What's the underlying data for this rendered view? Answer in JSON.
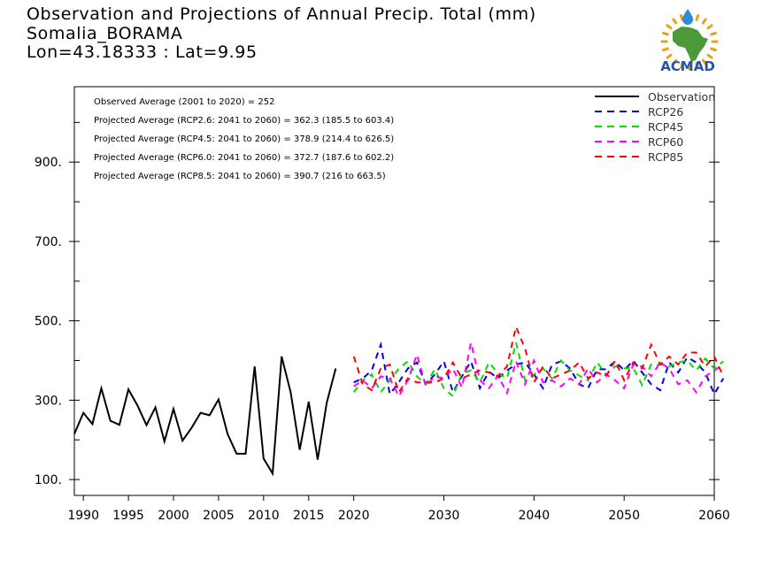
{
  "header": {
    "title_line1": "Observation and Projections of Annual Precip. Total (mm)",
    "title_line2": "Somalia_BORAMA",
    "title_line3": "Lon=43.18333 : Lat=9.95"
  },
  "logo": {
    "text": "ACMAD",
    "colors": {
      "text": "#2255a8",
      "africa": "#4a9a3a",
      "rays": "#e8a020",
      "drop": "#2a8fd0"
    }
  },
  "chart_data": {
    "type": "line",
    "xlim": [
      1989,
      2060
    ],
    "ylim": [
      60,
      1090
    ],
    "x_ticks": [
      1990,
      1995,
      2000,
      2005,
      2010,
      2015,
      2020,
      2030,
      2040,
      2050,
      2060
    ],
    "y_ticks": [
      100,
      300,
      500,
      700,
      900
    ],
    "y_tick_labels": [
      "100.",
      "300.",
      "500.",
      "700.",
      "900."
    ],
    "stats": [
      "Observed Average (2001 to 2020) = 252",
      "Projected Average (RCP2.6: 2041 to 2060) = 362.3 (185.5 to 603.4)",
      "Projected Average (RCP4.5: 2041 to 2060) = 378.9 (214.4 to 626.5)",
      "Projected Average (RCP6.0: 2041 to 2060) = 372.7 (187.6 to 602.2)",
      "Projected Average (RCP8.5: 2041 to 2060) = 390.7 (216 to 663.5)"
    ],
    "series": [
      {
        "name": "Observation",
        "color": "#000000",
        "dashed": false,
        "x_start": 1989,
        "values": [
          215,
          268,
          240,
          330,
          248,
          238,
          327,
          287,
          237,
          282,
          196,
          278,
          198,
          230,
          268,
          262,
          302,
          215,
          165,
          165,
          385,
          153,
          115,
          410,
          320,
          175,
          296,
          150,
          293,
          380
        ]
      },
      {
        "name": "RCP26",
        "color": "#0000ee",
        "dashed": true,
        "x_start": 2020,
        "values": [
          345,
          355,
          375,
          440,
          315,
          345,
          380,
          395,
          340,
          365,
          398,
          320,
          360,
          398,
          330,
          372,
          355,
          375,
          390,
          395,
          365,
          330,
          390,
          398,
          380,
          340,
          330,
          378,
          378,
          398,
          375,
          400,
          370,
          340,
          325,
          395,
          370,
          408,
          395,
          370,
          315,
          355
        ]
      },
      {
        "name": "RCP45",
        "color": "#00dd00",
        "dashed": true,
        "x_start": 2020,
        "values": [
          320,
          350,
          365,
          320,
          350,
          380,
          398,
          360,
          340,
          378,
          330,
          310,
          368,
          375,
          345,
          395,
          368,
          355,
          445,
          350,
          365,
          380,
          355,
          400,
          375,
          362,
          350,
          395,
          365,
          385,
          380,
          382,
          338,
          390,
          390,
          385,
          395,
          400,
          375,
          405,
          380,
          398
        ]
      },
      {
        "name": "RCP60",
        "color": "#ff00ff",
        "dashed": true,
        "x_start": 2020,
        "values": [
          335,
          350,
          330,
          360,
          355,
          310,
          350,
          415,
          335,
          360,
          355,
          380,
          332,
          445,
          350,
          330,
          362,
          318,
          398,
          340,
          400,
          345,
          350,
          335,
          355,
          340,
          380,
          345,
          365,
          350,
          330,
          390,
          385,
          360,
          395,
          380,
          340,
          350,
          320,
          360,
          375,
          390
        ]
      },
      {
        "name": "RCP85",
        "color": "#ff0000",
        "dashed": true,
        "x_start": 2020,
        "values": [
          410,
          340,
          325,
          380,
          390,
          320,
          355,
          345,
          345,
          345,
          355,
          395,
          355,
          365,
          375,
          370,
          360,
          385,
          485,
          430,
          345,
          385,
          355,
          365,
          375,
          395,
          355,
          370,
          360,
          400,
          350,
          395,
          380,
          440,
          390,
          410,
          390,
          420,
          420,
          385,
          410,
          360
        ]
      }
    ]
  }
}
